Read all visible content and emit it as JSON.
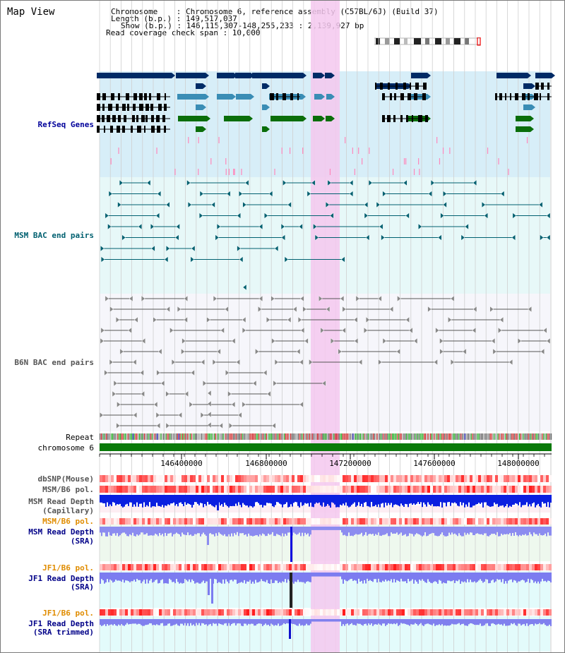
{
  "title": "Map View",
  "header": {
    "chromosome": "Chromosome    : Chromosome 6, reference assembly (C57BL/6J) (Build 37)",
    "length": "Length (b.p.) : 149,517,037",
    "show": "Show (b.p.) : 146,115,307-148,255,233 : 2,139,927 bp",
    "coverage": "Read coverage check span : 10,000"
  },
  "tracks": {
    "refseq": "RefSeq Genes",
    "msm_bac": "MSM BAC end pairs",
    "b6n_bac": "B6N BAC end pairs",
    "repeat": "Repeat",
    "chromosome": "chromosome 6",
    "dbsnp": "dbSNP(Mouse)",
    "msm_b6_pol": "MSM/B6 pol.",
    "msm_depth_cap_1": "MSM Read Depth",
    "msm_depth_cap_2": "(Capillary)",
    "msm_b6_pol_2": "MSM/B6 pol.",
    "msm_depth_sra_1": "MSM Read Depth",
    "msm_depth_sra_2": "(SRA)",
    "jf1_b6_pol": "JF1/B6 pol.",
    "jf1_depth_sra_1": "JF1 Read Depth",
    "jf1_depth_sra_2": "(SRA)",
    "jf1_b6_pol_2": "JF1/B6 pol.",
    "jf1_depth_trim_1": "JF1 Read Depth",
    "jf1_depth_trim_2": "(SRA trimmed)"
  },
  "axis_ticks": [
    "146400000",
    "146800000",
    "147200000",
    "147600000",
    "148000000"
  ],
  "colors": {
    "refseq": "#00009a",
    "msm": "#006070",
    "b6n": "#555555",
    "orange": "#e08c00",
    "navy": "#000088",
    "gene_dark": "#002b66",
    "gene_light": "#3a8db5",
    "gene_green": "#0a6e0a",
    "highlight": "#f5c8ee"
  }
}
